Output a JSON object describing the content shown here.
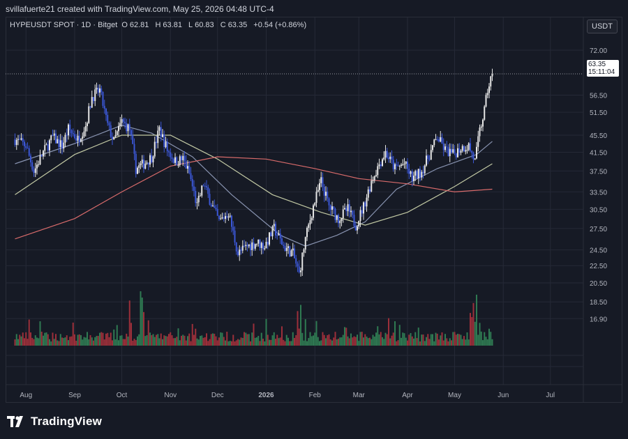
{
  "attribution": "svillafuerte21 created with TradingView.com, May 25, 2026 04:48 UTC-4",
  "header": {
    "symbol": "HYPEUSDT SPOT · 1D · Bitget",
    "open_label": "O",
    "open": "62.81",
    "high_label": "H",
    "high": "63.81",
    "low_label": "L",
    "low": "60.83",
    "close_label": "C",
    "close": "63.35",
    "change": "+0.54 (+0.86%)"
  },
  "currency": "USDT",
  "price_badge": {
    "price": "63.35",
    "countdown": "15:11:04"
  },
  "brand": "TradingView",
  "colors": {
    "up": "#e6e6e6",
    "down": "#3b57d6",
    "background": "#161a25",
    "ma_fast": "#8893b0",
    "ma_mid": "#c2c9a4",
    "ma_slow": "#d96b6b",
    "vol_up": "#2f7a52",
    "vol_down": "#9c2f3a"
  },
  "chart_data": {
    "type": "candlestick",
    "y_scale": "log",
    "ylim": [
      14.5,
      80
    ],
    "y_ticks": [
      "72.00",
      "56.50",
      "51.50",
      "45.50",
      "41.50",
      "37.50",
      "33.50",
      "30.50",
      "27.50",
      "24.50",
      "22.50",
      "20.50",
      "18.50",
      "16.90"
    ],
    "x_ticks": [
      "Aug",
      "Sep",
      "Oct",
      "Nov",
      "Dec",
      "2026",
      "Feb",
      "Mar",
      "Apr",
      "May",
      "Jun",
      "Jul"
    ],
    "last_price": 63.35,
    "close_series": [
      {
        "date": "2025-07-25",
        "close": 44.5
      },
      {
        "date": "2025-08-01",
        "close": 43.0
      },
      {
        "date": "2025-08-06",
        "close": 37.5
      },
      {
        "date": "2025-08-12",
        "close": 41.5
      },
      {
        "date": "2025-08-18",
        "close": 45.0
      },
      {
        "date": "2025-08-24",
        "close": 43.0
      },
      {
        "date": "2025-08-28",
        "close": 47.0
      },
      {
        "date": "2025-09-03",
        "close": 44.5
      },
      {
        "date": "2025-09-08",
        "close": 48.0
      },
      {
        "date": "2025-09-12",
        "close": 56.0
      },
      {
        "date": "2025-09-17",
        "close": 58.0
      },
      {
        "date": "2025-09-22",
        "close": 48.0
      },
      {
        "date": "2025-09-26",
        "close": 44.0
      },
      {
        "date": "2025-10-01",
        "close": 49.0
      },
      {
        "date": "2025-10-06",
        "close": 47.0
      },
      {
        "date": "2025-10-10",
        "close": 38.0
      },
      {
        "date": "2025-10-15",
        "close": 39.0
      },
      {
        "date": "2025-10-20",
        "close": 40.5
      },
      {
        "date": "2025-10-25",
        "close": 47.0
      },
      {
        "date": "2025-10-30",
        "close": 42.0
      },
      {
        "date": "2025-11-04",
        "close": 39.5
      },
      {
        "date": "2025-11-09",
        "close": 40.0
      },
      {
        "date": "2025-11-13",
        "close": 37.0
      },
      {
        "date": "2025-11-18",
        "close": 31.0
      },
      {
        "date": "2025-11-22",
        "close": 35.0
      },
      {
        "date": "2025-11-27",
        "close": 31.5
      },
      {
        "date": "2025-12-02",
        "close": 28.5
      },
      {
        "date": "2025-12-08",
        "close": 30.0
      },
      {
        "date": "2025-12-14",
        "close": 24.0
      },
      {
        "date": "2025-12-20",
        "close": 25.0
      },
      {
        "date": "2025-12-26",
        "close": 25.5
      },
      {
        "date": "2025-12-31",
        "close": 25.0
      },
      {
        "date": "2026-01-06",
        "close": 27.5
      },
      {
        "date": "2026-01-12",
        "close": 25.0
      },
      {
        "date": "2026-01-18",
        "close": 24.0
      },
      {
        "date": "2026-01-22",
        "close": 21.5
      },
      {
        "date": "2026-01-26",
        "close": 26.0
      },
      {
        "date": "2026-01-31",
        "close": 31.0
      },
      {
        "date": "2026-02-05",
        "close": 35.5
      },
      {
        "date": "2026-02-10",
        "close": 31.0
      },
      {
        "date": "2026-02-16",
        "close": 29.0
      },
      {
        "date": "2026-02-22",
        "close": 30.5
      },
      {
        "date": "2026-02-27",
        "close": 28.0
      },
      {
        "date": "2026-03-04",
        "close": 31.0
      },
      {
        "date": "2026-03-09",
        "close": 35.5
      },
      {
        "date": "2026-03-14",
        "close": 39.0
      },
      {
        "date": "2026-03-18",
        "close": 41.5
      },
      {
        "date": "2026-03-24",
        "close": 38.0
      },
      {
        "date": "2026-03-30",
        "close": 39.0
      },
      {
        "date": "2026-04-04",
        "close": 36.0
      },
      {
        "date": "2026-04-10",
        "close": 37.5
      },
      {
        "date": "2026-04-15",
        "close": 41.0
      },
      {
        "date": "2026-04-20",
        "close": 45.0
      },
      {
        "date": "2026-04-25",
        "close": 42.0
      },
      {
        "date": "2026-04-30",
        "close": 41.0
      },
      {
        "date": "2026-05-05",
        "close": 42.5
      },
      {
        "date": "2026-05-10",
        "close": 43.0
      },
      {
        "date": "2026-05-14",
        "close": 39.5
      },
      {
        "date": "2026-05-17",
        "close": 46.5
      },
      {
        "date": "2026-05-20",
        "close": 52.0
      },
      {
        "date": "2026-05-22",
        "close": 58.0
      },
      {
        "date": "2026-05-25",
        "close": 63.35
      }
    ],
    "moving_averages": [
      {
        "color_key": "ma_fast",
        "points": [
          {
            "date": "2025-07-25",
            "value": 39.0
          },
          {
            "date": "2025-09-01",
            "value": 43.5
          },
          {
            "date": "2025-10-01",
            "value": 48.0
          },
          {
            "date": "2025-10-20",
            "value": 46.0
          },
          {
            "date": "2025-11-15",
            "value": 40.5
          },
          {
            "date": "2025-12-10",
            "value": 33.0
          },
          {
            "date": "2026-01-10",
            "value": 26.5
          },
          {
            "date": "2026-01-26",
            "value": 25.0
          },
          {
            "date": "2026-02-15",
            "value": 26.5
          },
          {
            "date": "2026-03-05",
            "value": 28.5
          },
          {
            "date": "2026-03-25",
            "value": 34.0
          },
          {
            "date": "2026-04-20",
            "value": 38.0
          },
          {
            "date": "2026-05-15",
            "value": 41.0
          },
          {
            "date": "2026-05-25",
            "value": 44.0
          }
        ]
      },
      {
        "color_key": "ma_mid",
        "points": [
          {
            "date": "2025-07-25",
            "value": 33.0
          },
          {
            "date": "2025-09-01",
            "value": 41.0
          },
          {
            "date": "2025-10-01",
            "value": 45.5
          },
          {
            "date": "2025-11-01",
            "value": 45.5
          },
          {
            "date": "2025-12-01",
            "value": 40.0
          },
          {
            "date": "2026-01-05",
            "value": 33.0
          },
          {
            "date": "2026-02-05",
            "value": 30.0
          },
          {
            "date": "2026-03-05",
            "value": 28.0
          },
          {
            "date": "2026-04-01",
            "value": 30.0
          },
          {
            "date": "2026-05-01",
            "value": 34.5
          },
          {
            "date": "2026-05-25",
            "value": 39.0
          }
        ]
      },
      {
        "color_key": "ma_slow",
        "points": [
          {
            "date": "2025-07-25",
            "value": 26.0
          },
          {
            "date": "2025-09-01",
            "value": 29.0
          },
          {
            "date": "2025-10-01",
            "value": 33.5
          },
          {
            "date": "2025-11-01",
            "value": 38.5
          },
          {
            "date": "2025-12-01",
            "value": 40.5
          },
          {
            "date": "2026-01-01",
            "value": 40.0
          },
          {
            "date": "2026-02-01",
            "value": 38.0
          },
          {
            "date": "2026-03-01",
            "value": 36.0
          },
          {
            "date": "2026-04-01",
            "value": 35.0
          },
          {
            "date": "2026-05-01",
            "value": 33.5
          },
          {
            "date": "2026-05-25",
            "value": 34.0
          }
        ]
      }
    ]
  }
}
